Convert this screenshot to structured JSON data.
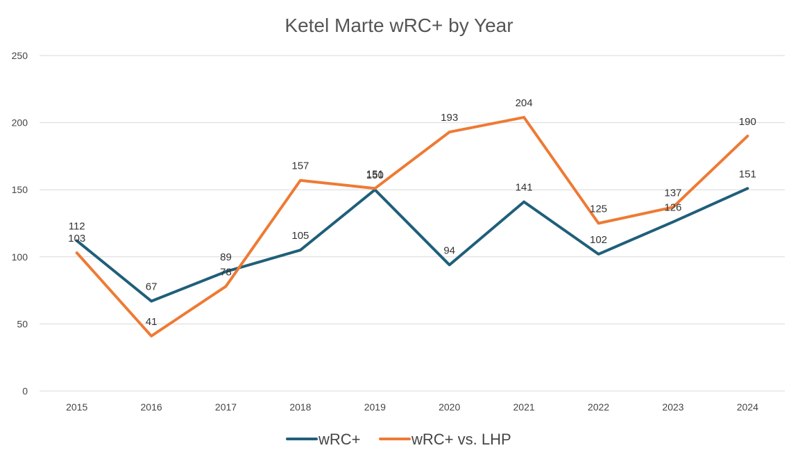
{
  "chart_data": {
    "type": "line",
    "title": "Ketel Marte wRC+ by Year",
    "xlabel": "",
    "ylabel": "",
    "categories": [
      "2015",
      "2016",
      "2017",
      "2018",
      "2019",
      "2020",
      "2021",
      "2022",
      "2023",
      "2024"
    ],
    "ylim": [
      0,
      250
    ],
    "yticks": [
      0,
      50,
      100,
      150,
      200,
      250
    ],
    "grid": true,
    "legend_position": "bottom",
    "series": [
      {
        "name": "wRC+",
        "color": "#1f5f7a",
        "values": [
          112,
          67,
          89,
          105,
          150,
          94,
          141,
          102,
          126,
          151
        ]
      },
      {
        "name": "wRC+ vs. LHP",
        "color": "#ee7a34",
        "values": [
          103,
          41,
          78,
          157,
          151,
          193,
          204,
          125,
          137,
          190
        ]
      }
    ]
  }
}
